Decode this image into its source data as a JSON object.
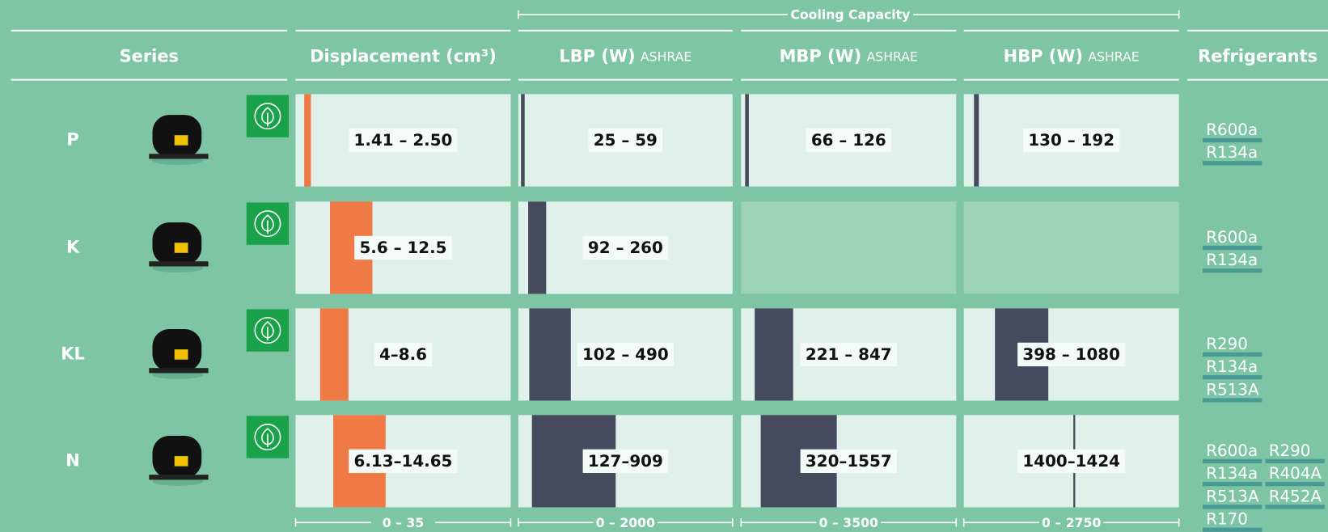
{
  "header": {
    "group_title": "Cooling Capacity"
  },
  "columns": [
    {
      "title": "Series"
    },
    {
      "title": "Displacement (cm³)",
      "xlim": [
        0,
        35
      ],
      "scale_label": "0 – 35",
      "bar_color": "#f07a45"
    },
    {
      "title": "LBP (W)",
      "note": "ASHRAE",
      "xlim": [
        0,
        2000
      ],
      "scale_label": "0 – 2000",
      "bar_color": "#454a5c"
    },
    {
      "title": "MBP (W)",
      "note": "ASHRAE",
      "xlim": [
        0,
        3500
      ],
      "scale_label": "0 – 3500",
      "bar_color": "#454a5c"
    },
    {
      "title": "HBP (W)",
      "note": "ASHRAE",
      "xlim": [
        0,
        2750
      ],
      "scale_label": "0 – 2750",
      "bar_color": "#454a5c"
    },
    {
      "title": "Refrigerants"
    }
  ],
  "rows": [
    {
      "series": "P",
      "cells": [
        {
          "range": [
            1.41,
            2.5
          ],
          "label": "1.41 – 2.50"
        },
        {
          "range": [
            25,
            59
          ],
          "label": "25 – 59"
        },
        {
          "range": [
            66,
            126
          ],
          "label": "66 – 126"
        },
        {
          "range": [
            130,
            192
          ],
          "label": "130 – 192"
        }
      ],
      "refrigerants": [
        [
          "R600a"
        ],
        [
          "R134a"
        ]
      ]
    },
    {
      "series": "K",
      "cells": [
        {
          "range": [
            5.6,
            12.5
          ],
          "label": "5.6 – 12.5"
        },
        {
          "range": [
            92,
            260
          ],
          "label": "92 – 260"
        },
        null,
        null
      ],
      "refrigerants": [
        [
          "R600a"
        ],
        [
          "R134a"
        ]
      ]
    },
    {
      "series": "KL",
      "cells": [
        {
          "range": [
            4,
            8.6
          ],
          "label": "4–8.6"
        },
        {
          "range": [
            102,
            490
          ],
          "label": "102 – 490"
        },
        {
          "range": [
            221,
            847
          ],
          "label": "221 – 847"
        },
        {
          "range": [
            398,
            1080
          ],
          "label": "398 – 1080"
        }
      ],
      "refrigerants": [
        [
          "R290"
        ],
        [
          "R134a"
        ],
        [
          "R513A"
        ]
      ]
    },
    {
      "series": "N",
      "cells": [
        {
          "range": [
            6.13,
            14.65
          ],
          "label": "6.13–14.65"
        },
        {
          "range": [
            127,
            909
          ],
          "label": "127–909"
        },
        {
          "range": [
            320,
            1557
          ],
          "label": "320–1557"
        },
        {
          "range": [
            1400,
            1424
          ],
          "label": "1400–1424"
        }
      ],
      "refrigerants": [
        [
          "R600a",
          "R290"
        ],
        [
          "R134a",
          "R404A"
        ],
        [
          "R513A",
          "R452A"
        ],
        [
          "R170"
        ]
      ]
    }
  ]
}
